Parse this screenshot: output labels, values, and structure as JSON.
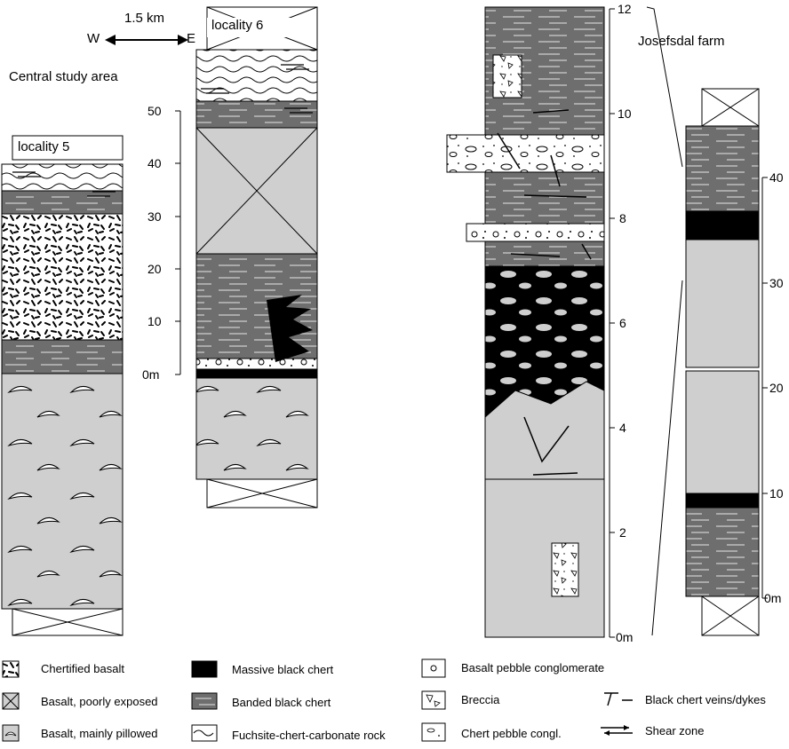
{
  "header": {
    "title": "Central study area",
    "scale": "1.5 km",
    "west": "W",
    "east": "E"
  },
  "columns": {
    "locality5": {
      "label": "locality 5"
    },
    "locality6": {
      "label": "locality 6"
    },
    "josefsdal": {
      "label": "Josefsdal farm"
    }
  },
  "scales": {
    "left": {
      "ticks": [
        "50",
        "40",
        "30",
        "20",
        "10",
        "0m"
      ]
    },
    "mid": {
      "ticks": [
        "12",
        "10",
        "8",
        "6",
        "4",
        "2",
        "0m"
      ]
    },
    "right": {
      "ticks": [
        "40",
        "30",
        "20",
        "10",
        "0m"
      ]
    }
  },
  "legend": [
    {
      "symbol": "chertified-basalt",
      "label": "Chertified basalt"
    },
    {
      "symbol": "basalt-poorly-exposed",
      "label": "Basalt, poorly exposed"
    },
    {
      "symbol": "basalt-pillowed",
      "label": "Basalt, mainly pillowed"
    },
    {
      "symbol": "massive-black-chert",
      "label": "Massive black chert"
    },
    {
      "symbol": "banded-black-chert",
      "label": "Banded black chert"
    },
    {
      "symbol": "fuchsite-chert-carbonate",
      "label": "Fuchsite-chert-carbonate rock"
    },
    {
      "symbol": "basalt-pebble-conglomerate",
      "label": "Basalt pebble conglomerate"
    },
    {
      "symbol": "breccia",
      "label": "Breccia"
    },
    {
      "symbol": "chert-pebble-congl",
      "label": "Chert pebble congl."
    },
    {
      "symbol": "black-chert-veins",
      "label": "Black chert veins/dykes"
    },
    {
      "symbol": "shear-zone",
      "label": "Shear zone"
    }
  ],
  "colors": {
    "banded_chert": "#6e6e6e",
    "basalt": "#cfcfcf",
    "massive_chert": "#000000",
    "paper": "#ffffff"
  }
}
